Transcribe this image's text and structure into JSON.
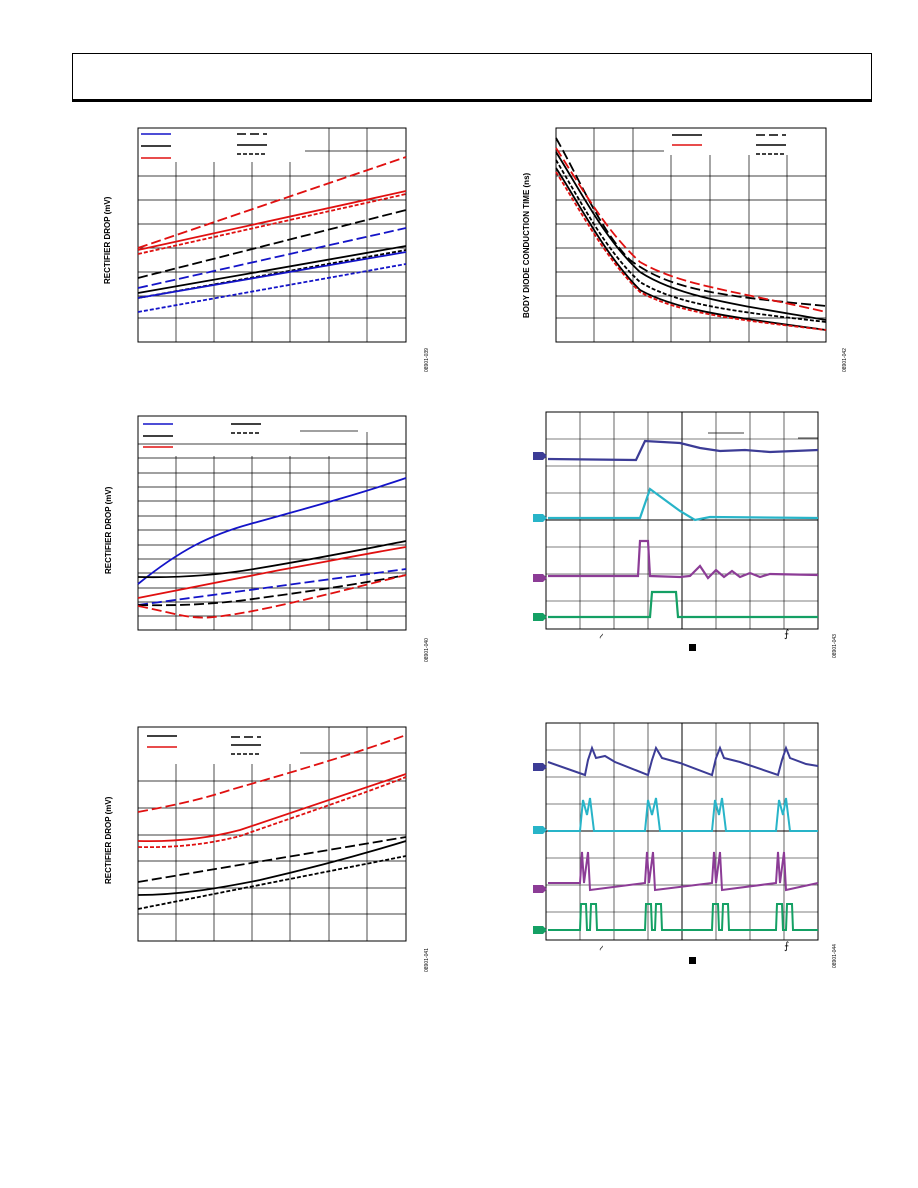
{
  "page": {
    "left_column_ylabel": "RECTIFIER DROP (mV)",
    "right_top_ylabel": "BODY DIODE CONDUCTION TIME (ns)"
  },
  "figure_codes": [
    "08901-039",
    "08901-040",
    "08901-041",
    "08901-042",
    "08901-043",
    "08901-044"
  ],
  "scope_symbols": {
    "tilde": "~",
    "edge": "⨍"
  },
  "colors": {
    "blue": "#1414c8",
    "black": "#000000",
    "red": "#e01010",
    "ch1": "#3c3c96",
    "ch2": "#28b4c8",
    "ch3": "#8c3c96",
    "ch4": "#14a064"
  }
}
